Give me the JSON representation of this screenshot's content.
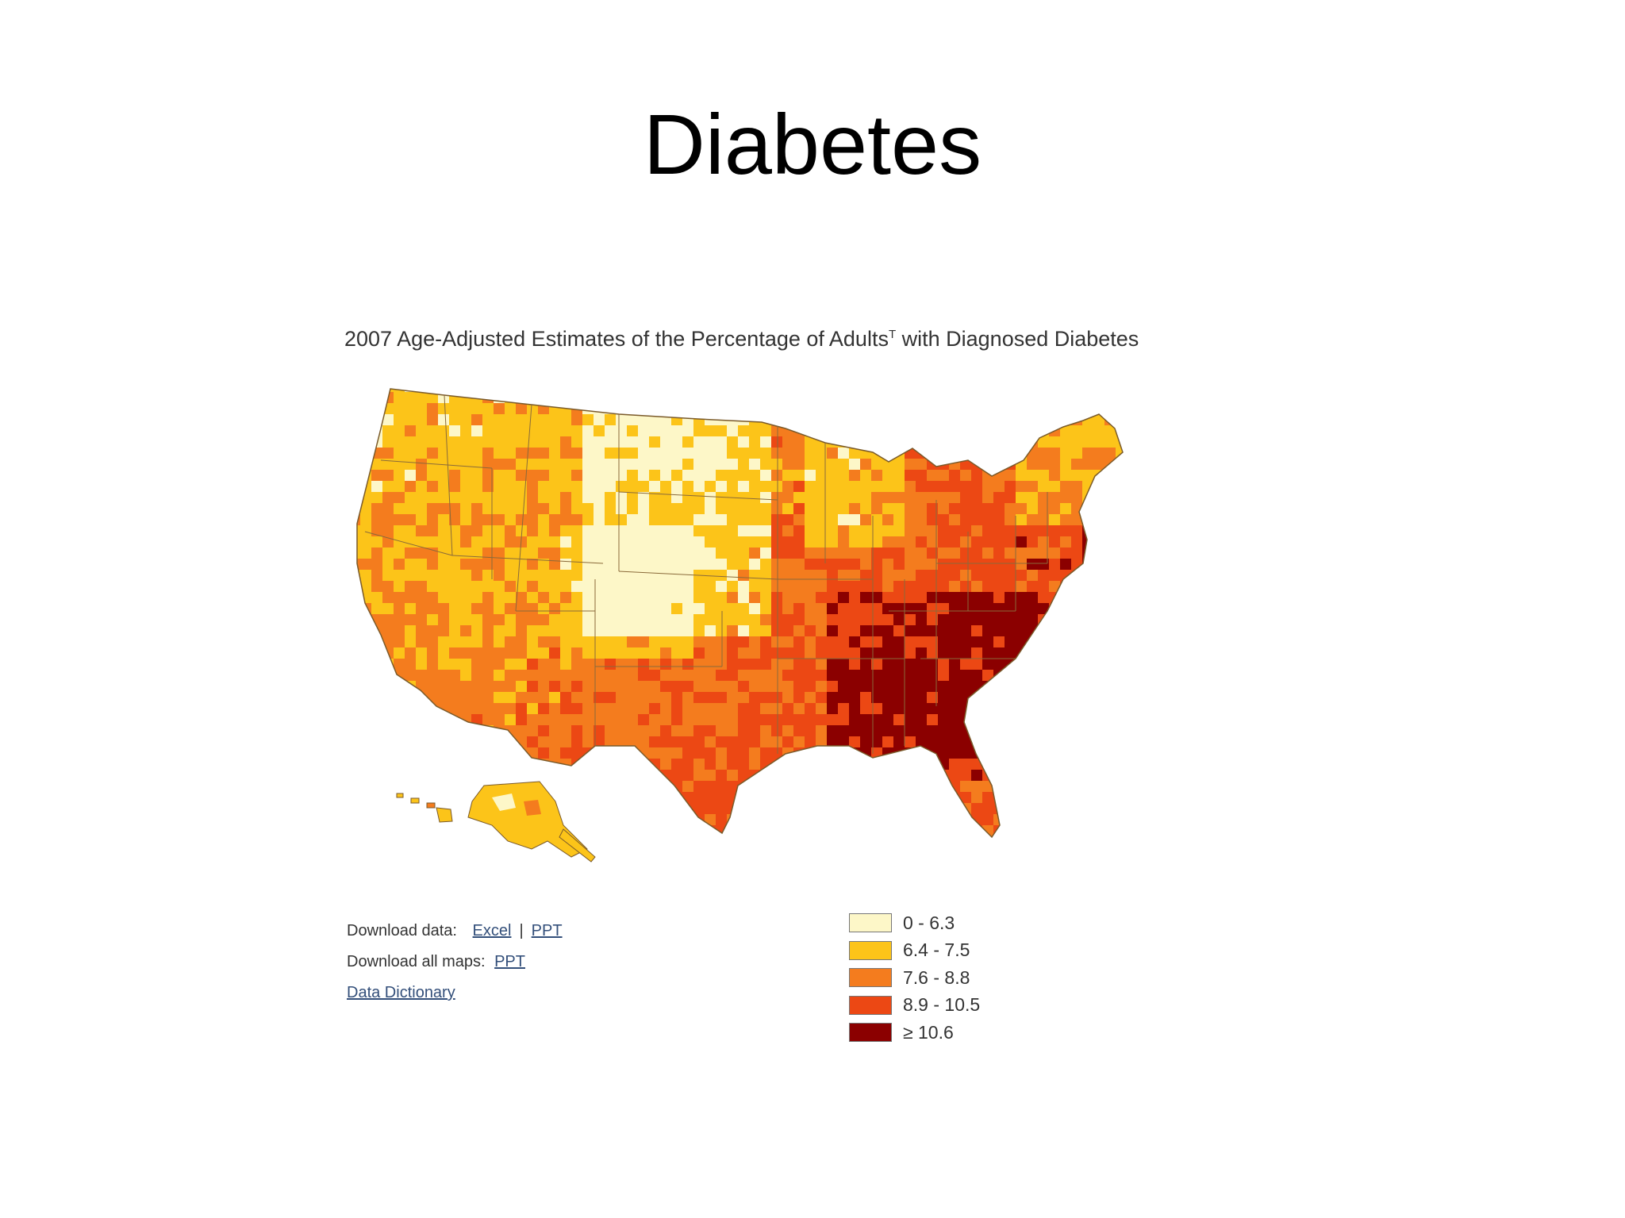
{
  "slide": {
    "title": "Diabetes"
  },
  "map": {
    "title_main": "2007 Age-Adjusted Estimates of the Percentage of Adults",
    "title_sup": "T",
    "title_end": " with Diagnosed Diabetes",
    "colors": {
      "class1": "#fdf7c8",
      "class2": "#fcc419",
      "class3": "#f47c1e",
      "class4": "#ec4814",
      "class5": "#8b0000",
      "border": "#7a5a2a"
    }
  },
  "downloads": {
    "data_label": "Download data:",
    "excel_link": "Excel",
    "separator": "|",
    "ppt_link": "PPT",
    "all_maps_label": "Download all maps:",
    "all_maps_ppt_link": "PPT",
    "dictionary_link": "Data Dictionary"
  },
  "legend": {
    "items": [
      {
        "label": "0 - 6.3",
        "color": "#fdf7c8"
      },
      {
        "label": "6.4 - 7.5",
        "color": "#fcc419"
      },
      {
        "label": "7.6 - 8.8",
        "color": "#f47c1e"
      },
      {
        "label": "8.9 - 10.5",
        "color": "#ec4814"
      },
      {
        "label": "≥ 10.6",
        "color": "#8b0000"
      }
    ]
  }
}
